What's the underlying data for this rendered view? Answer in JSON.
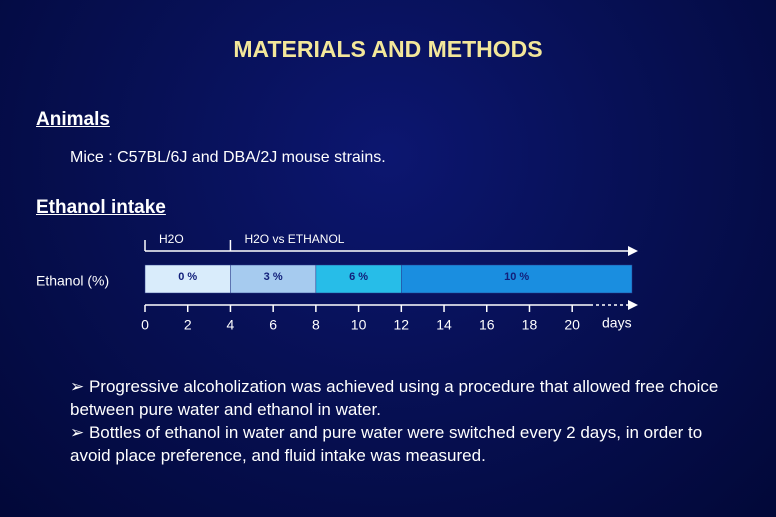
{
  "title": "MATERIALS AND METHODS",
  "sections": [
    {
      "heading": "Animals",
      "text": "Mice : C57BL/6J and DBA/2J mouse strains."
    },
    {
      "heading": "Ethanol intake"
    }
  ],
  "timeline": {
    "row_label": "Ethanol (%)",
    "phases": [
      {
        "label": "H2O",
        "start": 0
      },
      {
        "label": "H2O vs ETHANOL",
        "start": 4
      }
    ],
    "segments": [
      {
        "label": "0 %",
        "start": 0,
        "end": 4,
        "color": "#d9ecfb"
      },
      {
        "label": "3 %",
        "start": 4,
        "end": 8,
        "color": "#a6cbef"
      },
      {
        "label": "6 %",
        "start": 8,
        "end": 12,
        "color": "#27bde8"
      },
      {
        "label": "10 %",
        "start": 12,
        "end": 22.8,
        "color": "#1a8ee0"
      }
    ],
    "xlim": [
      0,
      22.8
    ],
    "xticks": [
      0,
      2,
      4,
      6,
      8,
      10,
      12,
      14,
      16,
      18,
      20
    ],
    "unit": "days"
  },
  "bullets": [
    "➢ Progressive alcoholization was achieved using a procedure that allowed free choice between pure water and ethanol in water.",
    "➢ Bottles of ethanol in water and pure water were switched every 2 days, in order to avoid place preference, and fluid intake was measured."
  ]
}
